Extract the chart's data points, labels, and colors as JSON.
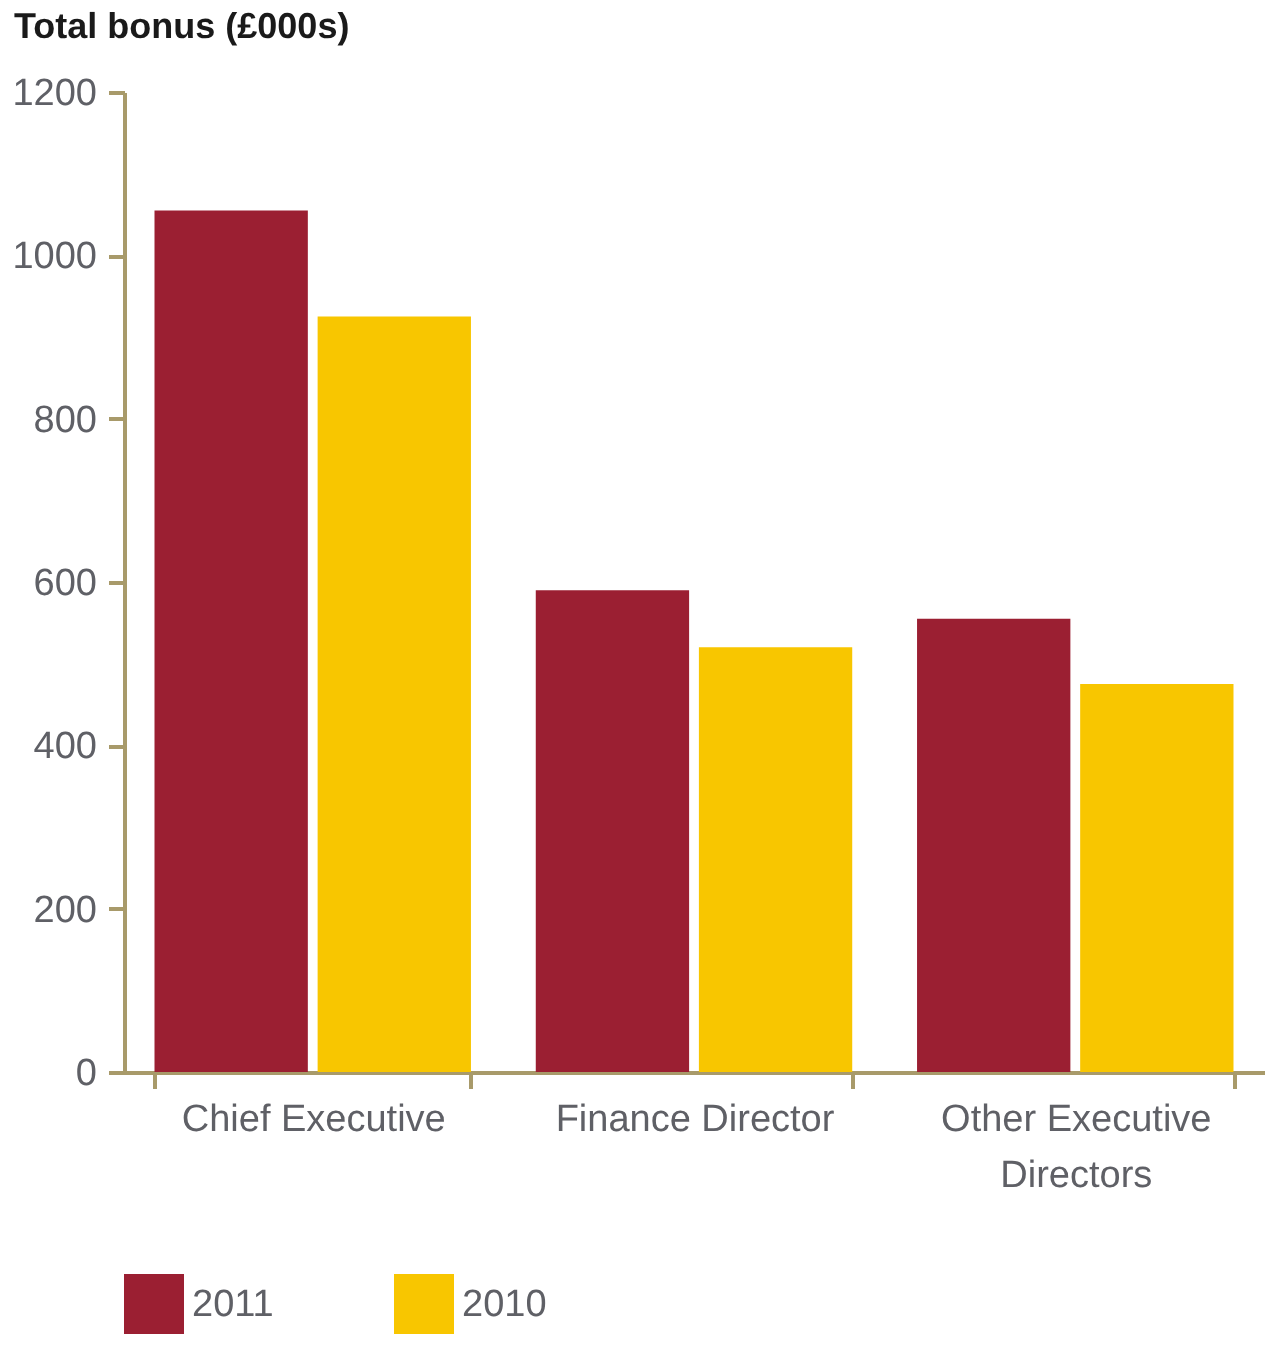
{
  "chart_data": {
    "type": "bar",
    "title": "Total bonus (£000s)",
    "categories": [
      "Chief Executive",
      "Finance Director",
      "Other Executive Directors"
    ],
    "series": [
      {
        "name": "2011",
        "color": "#9b1f32",
        "values": [
          1055,
          590,
          555
        ]
      },
      {
        "name": "2010",
        "color": "#f8c600",
        "values": [
          925,
          520,
          475
        ]
      }
    ],
    "ylim": [
      0,
      1200
    ],
    "yticks": [
      0,
      200,
      400,
      600,
      800,
      1000,
      1200
    ],
    "grid": false,
    "legend": "bottom"
  }
}
